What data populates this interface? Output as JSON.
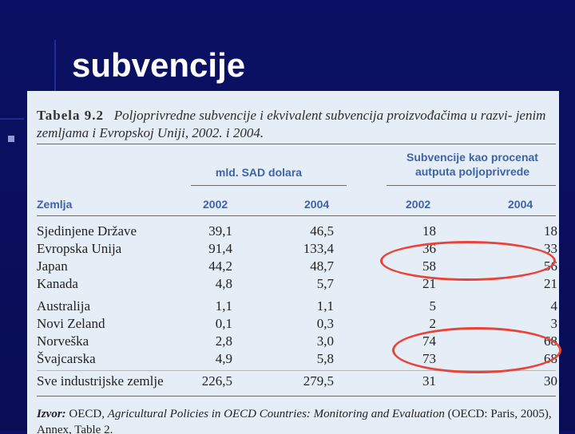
{
  "slide": {
    "title": "subvencije"
  },
  "table": {
    "caption_label": "Tabela 9.2",
    "caption_text": "Poljoprivredne subvencije i ekvivalent subvencija proizvođačima u razvi- jenim zemljama i Evropskoj Uniji, 2002. i 2004.",
    "group_header_1": "mld. SAD dolara",
    "group_header_2": "Subvencije kao procenat autputa poljoprivrede",
    "col_country": "Zemlja",
    "years": [
      "2002",
      "2004",
      "2002",
      "2004"
    ],
    "rows": [
      {
        "name": "Sjedinjene Države",
        "v": [
          "39,1",
          "46,5",
          "18",
          "18"
        ]
      },
      {
        "name": "Evropska Unija",
        "v": [
          "91,4",
          "133,4",
          "36",
          "33"
        ]
      },
      {
        "name": "Japan",
        "v": [
          "44,2",
          "48,7",
          "58",
          "56"
        ]
      },
      {
        "name": "Kanada",
        "v": [
          "4,8",
          "5,7",
          "21",
          "21"
        ]
      },
      {
        "name": "Australija",
        "v": [
          "1,1",
          "1,1",
          "5",
          "4"
        ]
      },
      {
        "name": "Novi Zeland",
        "v": [
          "0,1",
          "0,3",
          "2",
          "3"
        ]
      },
      {
        "name": "Norveška",
        "v": [
          "2,8",
          "3,0",
          "74",
          "68"
        ]
      },
      {
        "name": "Švajcarska",
        "v": [
          "4,9",
          "5,8",
          "73",
          "68"
        ]
      },
      {
        "name": "Sve industrijske zemlje",
        "v": [
          "226,5",
          "279,5",
          "31",
          "30"
        ]
      }
    ],
    "source_label": "Izvor:",
    "source_pre": "OECD,",
    "source_title": "Agricultural Policies in OECD Countries: Monitoring and Evaluation",
    "source_post": "(OECD: Paris, 2005),",
    "source_line2": "Annex, Table 2."
  },
  "colors": {
    "background": "#0a0f5e",
    "document_bg": "#e5eef7",
    "header_blue": "#3f62a8",
    "highlight_ring": "#e8453a"
  }
}
